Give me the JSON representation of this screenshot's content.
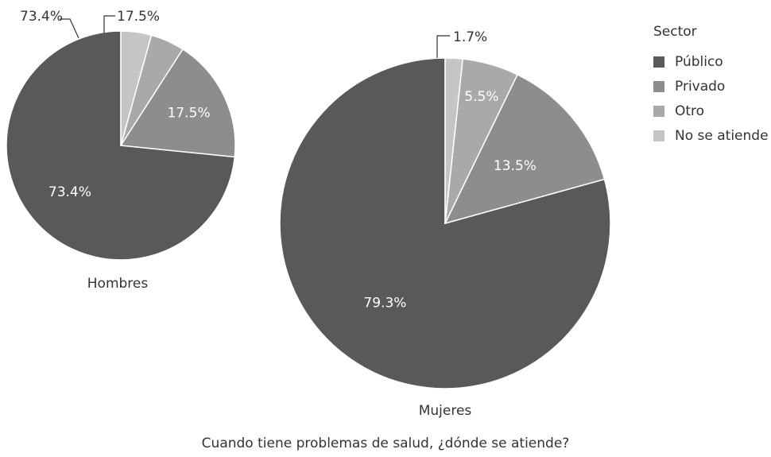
{
  "chart_data": {
    "type": "pie",
    "caption": "Cuando tiene problemas de salud, ¿dónde se atiende?",
    "legend_title": "Sector",
    "legend_position": "top-right",
    "categories": [
      "Público",
      "Privado",
      "Otro",
      "No se atiende"
    ],
    "colors": [
      "#58595b",
      "#8c8d8f",
      "#a8a9ab",
      "#c4c5c7"
    ],
    "pies": [
      {
        "name": "Hombres",
        "values": [
          73.4,
          17.5,
          4.8,
          4.3
        ],
        "labels": [
          "73.4%",
          "17.5%",
          "4.8%",
          "4.3%"
        ]
      },
      {
        "name": "Mujeres",
        "values": [
          79.3,
          13.5,
          5.5,
          1.7
        ],
        "labels": [
          "79.3%",
          "13.5%",
          "5.5%",
          "1.7%"
        ]
      }
    ]
  }
}
